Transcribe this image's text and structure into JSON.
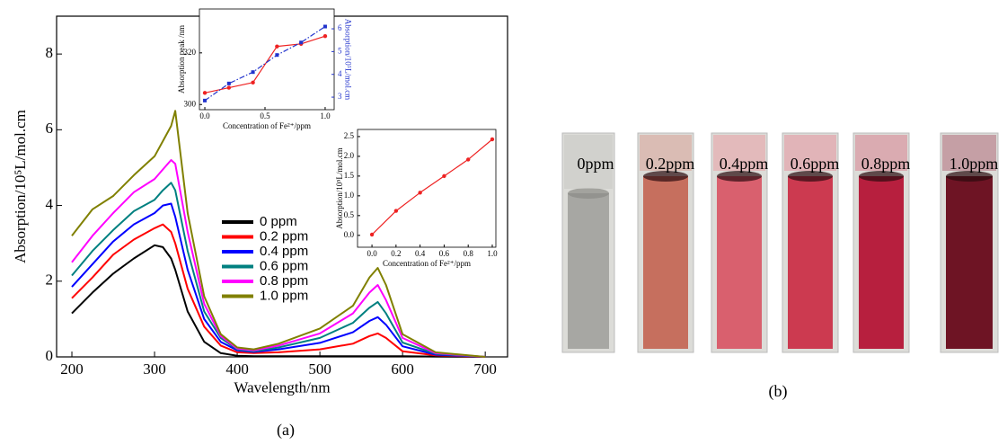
{
  "chart_data": [
    {
      "type": "line",
      "xlabel": "Wavelength/nm",
      "ylabel": "Absorption/10⁵L/mol.cm",
      "xlim": [
        181.5,
        727
      ],
      "ylim": [
        0,
        9
      ],
      "xticks": [
        200,
        300,
        400,
        500,
        600,
        700
      ],
      "yticks": [
        0,
        2,
        4,
        6,
        8
      ],
      "legend": "center",
      "x": [
        200,
        225,
        250,
        275,
        300,
        310,
        320,
        325,
        340,
        360,
        380,
        400,
        420,
        450,
        500,
        540,
        560,
        570,
        580,
        600,
        640,
        700
      ],
      "series": [
        {
          "name": "0 ppm",
          "color": "#000000",
          "values": [
            1.15,
            1.7,
            2.2,
            2.6,
            2.95,
            2.9,
            2.6,
            2.3,
            1.2,
            0.4,
            0.1,
            0.03,
            0.02,
            0.02,
            0.02,
            0.02,
            0.02,
            0.02,
            0.02,
            0.02,
            0.01,
            0
          ]
        },
        {
          "name": "0.2 ppm",
          "color": "#ff0000",
          "values": [
            1.55,
            2.1,
            2.7,
            3.1,
            3.4,
            3.5,
            3.3,
            3.0,
            1.8,
            0.8,
            0.3,
            0.12,
            0.1,
            0.12,
            0.2,
            0.35,
            0.55,
            0.62,
            0.5,
            0.15,
            0.04,
            0
          ]
        },
        {
          "name": "0.4 ppm",
          "color": "#0000ff",
          "values": [
            1.85,
            2.45,
            3.05,
            3.5,
            3.8,
            4.0,
            4.05,
            3.7,
            2.3,
            1.0,
            0.4,
            0.17,
            0.13,
            0.2,
            0.37,
            0.65,
            0.95,
            1.05,
            0.85,
            0.28,
            0.06,
            0
          ]
        },
        {
          "name": "0.6 ppm",
          "color": "#008080",
          "values": [
            2.15,
            2.8,
            3.35,
            3.85,
            4.15,
            4.4,
            4.6,
            4.4,
            2.8,
            1.2,
            0.5,
            0.2,
            0.15,
            0.25,
            0.5,
            0.9,
            1.3,
            1.45,
            1.15,
            0.38,
            0.08,
            0
          ]
        },
        {
          "name": "0.8 ppm",
          "color": "#ff00ff",
          "values": [
            2.5,
            3.2,
            3.8,
            4.35,
            4.7,
            4.95,
            5.2,
            5.1,
            3.3,
            1.4,
            0.55,
            0.22,
            0.17,
            0.3,
            0.62,
            1.15,
            1.7,
            1.9,
            1.5,
            0.5,
            0.1,
            0
          ]
        },
        {
          "name": "1.0 ppm",
          "color": "#808000",
          "values": [
            3.2,
            3.9,
            4.25,
            4.8,
            5.3,
            5.7,
            6.1,
            6.5,
            3.8,
            1.6,
            0.6,
            0.25,
            0.2,
            0.35,
            0.75,
            1.35,
            2.1,
            2.35,
            1.9,
            0.6,
            0.12,
            0
          ]
        }
      ]
    },
    {
      "type": "line",
      "xlabel": "Concentration of Fe²⁺/ppm",
      "ylabel": "Absorption peak /nm",
      "y2label": "Absorption/10⁵L/mol.cm",
      "xlim": [
        -0.045,
        1.075
      ],
      "ylim": [
        298,
        337
      ],
      "y2lim": [
        2.45,
        6.87
      ],
      "xticks": [
        {
          "value": 0,
          "label": "0.0"
        },
        {
          "value": 0.5,
          "label": "0.5"
        },
        {
          "value": 1,
          "label": "1.0"
        }
      ],
      "yticks": [
        300,
        320
      ],
      "y2ticks": [
        3,
        4,
        5,
        6
      ],
      "x": [
        0,
        0.2,
        0.4,
        0.6,
        0.8,
        1.0
      ],
      "series": [
        {
          "color": "#ee2222",
          "marker": "circle",
          "values": [
            304.5,
            306.5,
            308.5,
            322.5,
            323.5,
            326.5
          ]
        },
        {
          "color": "#2233cc",
          "marker": "square",
          "dash": "dashdot",
          "axis": "y2",
          "values": [
            2.85,
            3.6,
            4.1,
            4.85,
            5.4,
            6.1
          ]
        }
      ]
    },
    {
      "type": "line",
      "xlabel": "Concentration of Fe²⁺/ppm",
      "ylabel": "Absorption/10⁵L/mol.cm",
      "xlim": [
        -0.12,
        1.03
      ],
      "ylim": [
        -0.3,
        2.68
      ],
      "xticks": [
        {
          "value": 0,
          "label": "0.0"
        },
        {
          "value": 0.2,
          "label": "0.2"
        },
        {
          "value": 0.4,
          "label": "0.4"
        },
        {
          "value": 0.6,
          "label": "0.6"
        },
        {
          "value": 0.8,
          "label": "0.8"
        },
        {
          "value": 1,
          "label": "1.0"
        }
      ],
      "yticks": [
        {
          "value": 0,
          "label": "0.0"
        },
        {
          "value": 0.5,
          "label": "0.5"
        },
        {
          "value": 1,
          "label": "1.0"
        },
        {
          "value": 1.5,
          "label": "1.5"
        },
        {
          "value": 2,
          "label": "2.0"
        },
        {
          "value": 2.5,
          "label": "2.5"
        }
      ],
      "x": [
        0,
        0.2,
        0.4,
        0.6,
        0.8,
        1.0
      ],
      "series": [
        {
          "color": "#ee2222",
          "marker": "circle",
          "values": [
            0.02,
            0.62,
            1.08,
            1.5,
            1.92,
            2.43
          ]
        }
      ]
    }
  ],
  "photo": {
    "labels": [
      "0ppm",
      "0.2ppm",
      "0.4ppm",
      "0.6ppm",
      "0.8ppm",
      "1.0ppm"
    ]
  },
  "captions": [
    "(a)",
    "(b)"
  ]
}
